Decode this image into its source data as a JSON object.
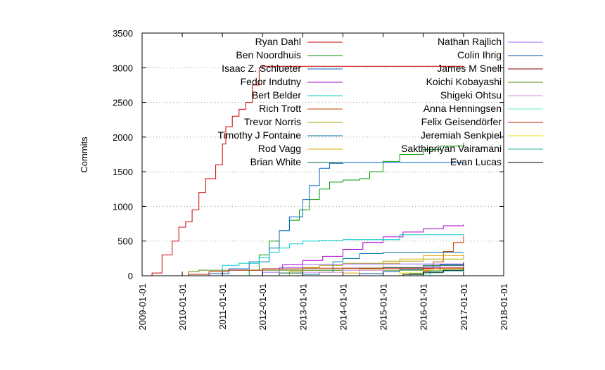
{
  "chart_data": {
    "type": "line",
    "title": "",
    "xlabel": "",
    "ylabel": "Commits",
    "xlim": [
      "2009-01-01",
      "2018-01-01"
    ],
    "ylim": [
      0,
      3500
    ],
    "x_ticks": [
      "2009-01-01",
      "2010-01-01",
      "2011-01-01",
      "2012-01-01",
      "2013-01-01",
      "2014-01-01",
      "2015-01-01",
      "2016-01-01",
      "2017-01-01",
      "2018-01-01"
    ],
    "y_ticks": [
      0,
      500,
      1000,
      1500,
      2000,
      2500,
      3000,
      3500
    ],
    "grid": "horizontal-dotted",
    "legend_position": "top, two columns",
    "series": [
      {
        "name": "Ryan Dahl",
        "color": "#cc0000",
        "points": [
          [
            "2009-03-01",
            0
          ],
          [
            "2009-04-01",
            40
          ],
          [
            "2009-07-01",
            300
          ],
          [
            "2009-10-01",
            500
          ],
          [
            "2009-12-01",
            700
          ],
          [
            "2010-02-01",
            780
          ],
          [
            "2010-04-01",
            950
          ],
          [
            "2010-06-01",
            1200
          ],
          [
            "2010-08-01",
            1400
          ],
          [
            "2010-11-01",
            1600
          ],
          [
            "2011-01-01",
            1900
          ],
          [
            "2011-02-01",
            2150
          ],
          [
            "2011-04-01",
            2300
          ],
          [
            "2011-06-01",
            2400
          ],
          [
            "2011-08-01",
            2500
          ],
          [
            "2011-10-01",
            2750
          ],
          [
            "2011-12-01",
            3000
          ],
          [
            "2012-01-01",
            3020
          ],
          [
            "2017-01-01",
            3020
          ]
        ]
      },
      {
        "name": "Ben Noordhuis",
        "color": "#009900",
        "points": [
          [
            "2011-07-01",
            0
          ],
          [
            "2011-09-01",
            80
          ],
          [
            "2011-12-01",
            300
          ],
          [
            "2012-03-01",
            500
          ],
          [
            "2012-06-01",
            650
          ],
          [
            "2012-09-01",
            800
          ],
          [
            "2012-12-01",
            950
          ],
          [
            "2013-03-01",
            1100
          ],
          [
            "2013-06-01",
            1250
          ],
          [
            "2013-09-01",
            1350
          ],
          [
            "2014-01-01",
            1380
          ],
          [
            "2014-06-01",
            1400
          ],
          [
            "2014-09-01",
            1500
          ],
          [
            "2015-01-01",
            1650
          ],
          [
            "2015-06-01",
            1750
          ],
          [
            "2016-01-01",
            1820
          ],
          [
            "2016-06-01",
            1870
          ],
          [
            "2017-01-01",
            1920
          ]
        ]
      },
      {
        "name": "Isaac Z. Schlueter",
        "color": "#0066cc",
        "points": [
          [
            "2010-03-01",
            0
          ],
          [
            "2010-09-01",
            30
          ],
          [
            "2011-03-01",
            100
          ],
          [
            "2011-09-01",
            200
          ],
          [
            "2012-03-01",
            400
          ],
          [
            "2012-06-01",
            650
          ],
          [
            "2012-09-01",
            850
          ],
          [
            "2013-01-01",
            1100
          ],
          [
            "2013-03-01",
            1300
          ],
          [
            "2013-06-01",
            1550
          ],
          [
            "2013-09-01",
            1620
          ],
          [
            "2014-01-01",
            1630
          ],
          [
            "2017-01-01",
            1630
          ]
        ]
      },
      {
        "name": "Fedor Indutny",
        "color": "#aa00cc",
        "points": [
          [
            "2011-06-01",
            0
          ],
          [
            "2012-01-01",
            100
          ],
          [
            "2012-07-01",
            160
          ],
          [
            "2013-01-01",
            220
          ],
          [
            "2013-07-01",
            280
          ],
          [
            "2014-01-01",
            380
          ],
          [
            "2014-07-01",
            480
          ],
          [
            "2015-01-01",
            560
          ],
          [
            "2015-07-01",
            630
          ],
          [
            "2016-01-01",
            680
          ],
          [
            "2016-07-01",
            720
          ],
          [
            "2017-01-01",
            740
          ]
        ]
      },
      {
        "name": "Bert Belder",
        "color": "#00cccc",
        "points": [
          [
            "2010-11-01",
            0
          ],
          [
            "2011-01-01",
            150
          ],
          [
            "2011-06-01",
            180
          ],
          [
            "2011-12-01",
            260
          ],
          [
            "2012-03-01",
            340
          ],
          [
            "2012-06-01",
            400
          ],
          [
            "2012-09-01",
            460
          ],
          [
            "2013-01-01",
            500
          ],
          [
            "2013-06-01",
            510
          ],
          [
            "2014-01-01",
            520
          ],
          [
            "2015-06-01",
            590
          ],
          [
            "2017-01-01",
            600
          ]
        ]
      },
      {
        "name": "Rich Trott",
        "color": "#cc4400",
        "points": [
          [
            "2015-06-01",
            0
          ],
          [
            "2015-09-01",
            30
          ],
          [
            "2016-01-01",
            100
          ],
          [
            "2016-04-01",
            200
          ],
          [
            "2016-07-01",
            350
          ],
          [
            "2016-10-01",
            480
          ],
          [
            "2017-01-01",
            580
          ]
        ]
      },
      {
        "name": "Trevor Norris",
        "color": "#aaaa00",
        "points": [
          [
            "2012-03-01",
            0
          ],
          [
            "2012-09-01",
            60
          ],
          [
            "2013-01-01",
            120
          ],
          [
            "2013-06-01",
            150
          ],
          [
            "2014-01-01",
            180
          ],
          [
            "2015-01-01",
            210
          ],
          [
            "2016-01-01",
            240
          ],
          [
            "2017-01-01",
            280
          ]
        ]
      },
      {
        "name": "Timothy J Fontaine",
        "color": "#0077aa",
        "points": [
          [
            "2012-06-01",
            0
          ],
          [
            "2013-01-01",
            20
          ],
          [
            "2013-06-01",
            50
          ],
          [
            "2013-10-01",
            200
          ],
          [
            "2014-01-01",
            250
          ],
          [
            "2014-06-01",
            320
          ],
          [
            "2015-01-01",
            340
          ],
          [
            "2017-01-01",
            340
          ]
        ]
      },
      {
        "name": "Rod Vagg",
        "color": "#ddaa00",
        "points": [
          [
            "2013-06-01",
            0
          ],
          [
            "2014-01-01",
            40
          ],
          [
            "2014-06-01",
            100
          ],
          [
            "2015-01-01",
            180
          ],
          [
            "2015-06-01",
            240
          ],
          [
            "2016-01-01",
            290
          ],
          [
            "2017-01-01",
            320
          ]
        ]
      },
      {
        "name": "Brian White",
        "color": "#006633",
        "points": [
          [
            "2011-09-01",
            0
          ],
          [
            "2012-06-01",
            40
          ],
          [
            "2013-01-01",
            80
          ],
          [
            "2014-01-01",
            110
          ],
          [
            "2015-01-01",
            120
          ],
          [
            "2016-01-01",
            150
          ],
          [
            "2017-01-01",
            200
          ]
        ]
      },
      {
        "name": "Nathan Rajlich",
        "color": "#9966ff",
        "points": [
          [
            "2011-06-01",
            0
          ],
          [
            "2012-01-01",
            50
          ],
          [
            "2012-06-01",
            120
          ],
          [
            "2013-01-01",
            160
          ],
          [
            "2014-01-01",
            170
          ],
          [
            "2017-01-01",
            175
          ]
        ]
      },
      {
        "name": "Colin Ihrig",
        "color": "#0055aa",
        "points": [
          [
            "2013-09-01",
            0
          ],
          [
            "2014-06-01",
            30
          ],
          [
            "2015-01-01",
            60
          ],
          [
            "2015-06-01",
            90
          ],
          [
            "2016-01-01",
            130
          ],
          [
            "2016-06-01",
            160
          ],
          [
            "2017-01-01",
            190
          ]
        ]
      },
      {
        "name": "James M Snell",
        "color": "#880000",
        "points": [
          [
            "2015-04-01",
            0
          ],
          [
            "2015-09-01",
            30
          ],
          [
            "2016-01-01",
            70
          ],
          [
            "2016-06-01",
            120
          ],
          [
            "2017-01-01",
            180
          ]
        ]
      },
      {
        "name": "Koichi Kobayashi",
        "color": "#558800",
        "points": [
          [
            "2009-09-01",
            0
          ],
          [
            "2010-03-01",
            60
          ],
          [
            "2010-06-01",
            80
          ],
          [
            "2017-01-01",
            90
          ]
        ]
      },
      {
        "name": "Shigeki Ohtsu",
        "color": "#dd88dd",
        "points": [
          [
            "2012-01-01",
            0
          ],
          [
            "2013-01-01",
            50
          ],
          [
            "2014-01-01",
            80
          ],
          [
            "2015-01-01",
            110
          ],
          [
            "2016-01-01",
            120
          ],
          [
            "2017-01-01",
            130
          ]
        ]
      },
      {
        "name": "Anna Henningsen",
        "color": "#66eebb",
        "points": [
          [
            "2015-11-01",
            0
          ],
          [
            "2016-03-01",
            40
          ],
          [
            "2016-07-01",
            80
          ],
          [
            "2017-01-01",
            120
          ]
        ]
      },
      {
        "name": "Felix Geisendörfer",
        "color": "#bb2200",
        "points": [
          [
            "2009-12-01",
            0
          ],
          [
            "2010-03-01",
            20
          ],
          [
            "2010-09-01",
            60
          ],
          [
            "2011-03-01",
            80
          ],
          [
            "2012-01-01",
            100
          ],
          [
            "2013-01-01",
            110
          ],
          [
            "2017-01-01",
            110
          ]
        ]
      },
      {
        "name": "Jeremiah Senkpiel",
        "color": "#eedd00",
        "points": [
          [
            "2015-01-01",
            0
          ],
          [
            "2015-06-01",
            40
          ],
          [
            "2016-01-01",
            80
          ],
          [
            "2016-07-01",
            100
          ],
          [
            "2017-01-01",
            110
          ]
        ]
      },
      {
        "name": "Sakthipriyan Vairamani",
        "color": "#22bbaa",
        "points": [
          [
            "2015-03-01",
            0
          ],
          [
            "2015-09-01",
            30
          ],
          [
            "2016-03-01",
            70
          ],
          [
            "2017-01-01",
            110
          ]
        ]
      },
      {
        "name": "Evan Lucas",
        "color": "#000000",
        "points": [
          [
            "2015-01-01",
            0
          ],
          [
            "2015-07-01",
            20
          ],
          [
            "2016-01-01",
            50
          ],
          [
            "2016-07-01",
            80
          ],
          [
            "2017-01-01",
            120
          ]
        ]
      }
    ]
  }
}
